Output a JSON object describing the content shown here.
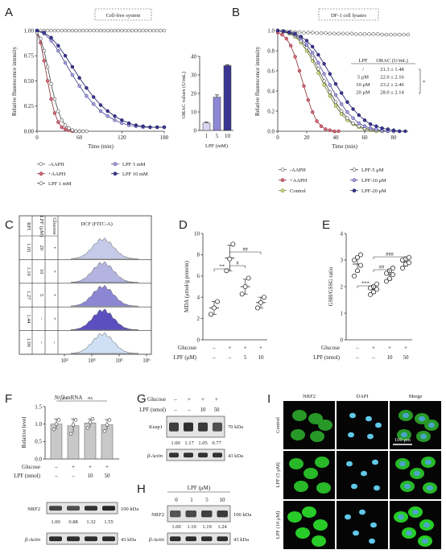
{
  "panels": {
    "A": {
      "letter": "A",
      "box_title": "Cell-free system",
      "ylabel": "Relative fluorescence intensity",
      "xlabel": "Time (min)",
      "legend": [
        "-AAPH",
        "+AAPH",
        "LPF 1 mM",
        "LPF 5 mM",
        "LPF 10 mM"
      ],
      "inset": {
        "ylabel": "ORAC values (U/mL)",
        "xlabel": "LPF (mM)"
      }
    },
    "B": {
      "letter": "B",
      "box_title": "DF-1 cell lysates",
      "ylabel": "Relative fluorescence intensity",
      "xlabel": "Time (min)",
      "legend": [
        "-AAPH",
        "+AAPH",
        "Control",
        "LPF-5 μM",
        "LPF-10 μM",
        "LPF-20 μM"
      ],
      "table": {
        "headers": [
          "LPF",
          "ORAC (U/mL)"
        ],
        "rows": [
          [
            "/",
            "21.3 ± 1.48"
          ],
          [
            "5 μM",
            "22.0 ± 2.16"
          ],
          [
            "10 μM",
            "23.2 ± 2.46"
          ],
          [
            "20 μM",
            "28.0 ± 2.14"
          ]
        ],
        "sig": "*"
      }
    },
    "C": {
      "letter": "C",
      "title": "DCF (FITC-A)",
      "col_headers": [
        "RFI",
        "LPF (μM)",
        "Glucose"
      ],
      "rows": [
        [
          "1.05",
          "20",
          "+"
        ],
        [
          "1.10",
          "10",
          "+"
        ],
        [
          "1.27",
          "5",
          "+"
        ],
        [
          "1.44",
          "–",
          "+"
        ],
        [
          "1.00",
          "–",
          "–"
        ]
      ],
      "xticks": [
        "10³",
        "10⁴",
        "10⁵",
        "10⁶"
      ]
    },
    "D": {
      "letter": "D",
      "ylabel": "MDA (μmol/g protein)",
      "sig": [
        "**",
        "#",
        "##"
      ],
      "row_labels": [
        "Glucose",
        "LPF (μM)"
      ],
      "glucose": [
        "–",
        "+",
        "+",
        "+"
      ],
      "lpf": [
        "–",
        "–",
        "5",
        "10"
      ]
    },
    "E": {
      "letter": "E",
      "ylabel": "GSH/GSSG ratio",
      "sig": [
        "***",
        "##",
        "###"
      ],
      "row_labels": [
        "Glucose",
        "LPF (nmol)"
      ],
      "glucose": [
        "–",
        "+",
        "+",
        "+"
      ],
      "lpf": [
        "–",
        "–",
        "10",
        "50"
      ]
    },
    "F": {
      "letter": "F",
      "title_gene": "Nrf2",
      "title_rest": " mRNA",
      "ylabel": "Relative level",
      "sig": [
        "ns",
        "ns"
      ],
      "row_labels": [
        "Glucose",
        "LPF (nmol)"
      ],
      "glucose": [
        "–",
        "+",
        "+",
        "+"
      ],
      "lpf": [
        "–",
        "–",
        "10",
        "50"
      ],
      "blots": [
        {
          "name": "NRF2",
          "size": "100 kDa",
          "values": [
            "1.00",
            "0.88",
            "1.32",
            "1.55"
          ]
        },
        {
          "name": "β-Actin",
          "size": "43 kDa"
        }
      ]
    },
    "G": {
      "letter": "G",
      "row_labels": [
        "Glucose",
        "LPF (nmol)"
      ],
      "glucose": [
        "–",
        "+",
        "+",
        "+"
      ],
      "lpf": [
        "–",
        "–",
        "10",
        "50"
      ],
      "blots": [
        {
          "name": "Keap1",
          "size": "70 kDa",
          "values": [
            "1.00",
            "1.17",
            "1.05",
            "0.77"
          ]
        },
        {
          "name": "β-Actin",
          "size": "43 kDa"
        }
      ]
    },
    "H": {
      "letter": "H",
      "header": "LPF (μM)",
      "lanes": [
        "0",
        "1",
        "5",
        "10"
      ],
      "blots": [
        {
          "name": "NRF2",
          "size": "100 kDa",
          "values": [
            "1.00",
            "1.10",
            "1.19",
            "1.24"
          ]
        },
        {
          "name": "β-Actin",
          "size": "43 kDa"
        }
      ]
    },
    "I": {
      "letter": "I",
      "columns": [
        "NRF2",
        "DAPI",
        "Merge"
      ],
      "rows": [
        "Control",
        "LPF (5 μM)",
        "LPF (10 μM)"
      ],
      "scale": "100 μm"
    }
  },
  "chart_data": [
    {
      "panel": "A",
      "type": "line",
      "xlabel": "Time (min)",
      "ylabel": "Relative fluorescence intensity",
      "xlim": [
        0,
        180
      ],
      "ylim": [
        0,
        1.0
      ],
      "xticks": [
        0,
        60,
        120,
        180
      ],
      "yticks": [
        0,
        0.25,
        0.5,
        0.75,
        1.0
      ],
      "series": [
        {
          "name": "-AAPH",
          "color": "#ffffff",
          "stroke": "#555555",
          "x": [
            0,
            5,
            10,
            15,
            20,
            25,
            30,
            35,
            40,
            45,
            50,
            55,
            60,
            65,
            70,
            75,
            80,
            85,
            90,
            95,
            100,
            105,
            110,
            115,
            120,
            125,
            130,
            135,
            140,
            145,
            150,
            155,
            160,
            165,
            170,
            175,
            180
          ],
          "y": [
            1,
            1,
            1,
            1,
            1,
            1,
            1,
            1,
            1,
            1,
            1,
            1,
            1,
            1,
            1,
            1,
            1,
            1,
            1,
            1,
            1,
            1,
            1,
            1,
            1,
            1,
            1,
            1,
            1,
            1,
            1,
            1,
            1,
            1,
            1,
            1,
            1
          ]
        },
        {
          "name": "+AAPH",
          "color": "#d86a78",
          "stroke": "#8b2e3a",
          "x": [
            0,
            5,
            10,
            15,
            20,
            25,
            30,
            35,
            40,
            45,
            50,
            55,
            60
          ],
          "y": [
            0.98,
            0.88,
            0.7,
            0.5,
            0.32,
            0.18,
            0.09,
            0.04,
            0.02,
            0.01,
            0.0,
            0.0,
            0.0
          ]
        },
        {
          "name": "LPF 1 mM",
          "color": "#ffffff",
          "stroke": "#444444",
          "x": [
            0,
            5,
            10,
            15,
            20,
            25,
            30,
            35,
            40,
            45,
            50,
            55,
            60,
            65,
            70
          ],
          "y": [
            0.98,
            0.92,
            0.8,
            0.64,
            0.47,
            0.32,
            0.2,
            0.11,
            0.06,
            0.03,
            0.01,
            0.0,
            0.0,
            0.0,
            0.0
          ]
        },
        {
          "name": "LPF 5 mM",
          "color": "#a8a4e0",
          "stroke": "#4a4590",
          "x": [
            0,
            10,
            20,
            30,
            40,
            50,
            60,
            70,
            80,
            90,
            100,
            110,
            120,
            130,
            140,
            150,
            160,
            170,
            180
          ],
          "y": [
            1,
            0.97,
            0.9,
            0.8,
            0.68,
            0.56,
            0.45,
            0.35,
            0.27,
            0.2,
            0.15,
            0.11,
            0.08,
            0.06,
            0.05,
            0.04,
            0.04,
            0.04,
            0.04
          ]
        },
        {
          "name": "LPF 10 mM",
          "color": "#3a3690",
          "stroke": "#1f1c60",
          "x": [
            0,
            10,
            20,
            30,
            40,
            50,
            60,
            70,
            80,
            90,
            100,
            110,
            120,
            130,
            140,
            150,
            160,
            170,
            180
          ],
          "y": [
            1,
            0.98,
            0.93,
            0.85,
            0.75,
            0.64,
            0.53,
            0.43,
            0.34,
            0.26,
            0.2,
            0.15,
            0.11,
            0.08,
            0.06,
            0.05,
            0.04,
            0.04,
            0.04
          ]
        }
      ]
    },
    {
      "panel": "A-inset",
      "type": "bar",
      "xlabel": "LPF (mM)",
      "ylabel": "ORAC values (U/mL)",
      "categories": [
        "1",
        "5",
        "10"
      ],
      "values": [
        4,
        18,
        35
      ],
      "errors": [
        0.5,
        1.2,
        0.5
      ],
      "colors": [
        "#d9d5f2",
        "#8e88d4",
        "#3a3690"
      ],
      "ylim": [
        0,
        40
      ],
      "yticks": [
        0,
        10,
        20,
        30,
        40
      ]
    },
    {
      "panel": "B",
      "type": "line",
      "xlabel": "Time (min)",
      "ylabel": "Relative fluorescence intensity",
      "xlim": [
        0,
        90
      ],
      "ylim": [
        0,
        1.0
      ],
      "xticks": [
        0,
        20,
        40,
        60,
        80
      ],
      "yticks": [
        0,
        0.2,
        0.4,
        0.6,
        0.8,
        1.0
      ],
      "series": [
        {
          "name": "-AAPH",
          "color": "#ffffff",
          "stroke": "#555555",
          "x": [
            0,
            3,
            6,
            9,
            12,
            15,
            18,
            21,
            24,
            27,
            30,
            33,
            36,
            39,
            42,
            45,
            48,
            51,
            54,
            57,
            60,
            63,
            66,
            69,
            72,
            75,
            78,
            81,
            84,
            87,
            90
          ],
          "y": [
            1,
            0.995,
            0.99,
            0.99,
            0.985,
            0.985,
            0.98,
            0.98,
            0.98,
            0.975,
            0.975,
            0.975,
            0.97,
            0.97,
            0.97,
            0.97,
            0.97,
            0.97,
            0.965,
            0.965,
            0.965,
            0.965,
            0.965,
            0.965,
            0.96,
            0.96,
            0.96,
            0.96,
            0.96,
            0.96,
            0.96
          ]
        },
        {
          "name": "+AAPH",
          "color": "#d86a78",
          "stroke": "#8b2e3a",
          "x": [
            0,
            3,
            6,
            9,
            12,
            15,
            18,
            21,
            24,
            27,
            30,
            33,
            36,
            39,
            42
          ],
          "y": [
            0.98,
            0.96,
            0.92,
            0.85,
            0.74,
            0.6,
            0.45,
            0.31,
            0.19,
            0.1,
            0.05,
            0.02,
            0.01,
            0.0,
            0.0
          ]
        },
        {
          "name": "Control",
          "color": "#d4e08a",
          "stroke": "#6b7a20",
          "x": [
            0,
            4,
            8,
            12,
            16,
            20,
            24,
            28,
            32,
            36,
            40,
            44,
            48,
            52,
            56,
            60,
            64,
            68,
            72,
            76,
            80
          ],
          "y": [
            1,
            0.99,
            0.97,
            0.94,
            0.88,
            0.8,
            0.7,
            0.58,
            0.46,
            0.35,
            0.25,
            0.17,
            0.11,
            0.07,
            0.04,
            0.02,
            0.01,
            0.0,
            0.0,
            0.0,
            0.0
          ]
        },
        {
          "name": "LPF-5 μM",
          "color": "#ffffff",
          "stroke": "#444444",
          "x": [
            0,
            4,
            8,
            12,
            16,
            20,
            24,
            28,
            32,
            36,
            40,
            44,
            48,
            52,
            56,
            60,
            64,
            68,
            72,
            76,
            80
          ],
          "y": [
            1,
            0.99,
            0.975,
            0.95,
            0.9,
            0.83,
            0.73,
            0.62,
            0.5,
            0.39,
            0.29,
            0.2,
            0.13,
            0.08,
            0.05,
            0.03,
            0.02,
            0.01,
            0.0,
            0.0,
            0.0
          ]
        },
        {
          "name": "LPF-10 μM",
          "color": "#a8a4e0",
          "stroke": "#4a4590",
          "x": [
            0,
            4,
            8,
            12,
            16,
            20,
            24,
            28,
            32,
            36,
            40,
            44,
            48,
            52,
            56,
            60,
            64,
            68,
            72,
            76,
            80,
            84
          ],
          "y": [
            1,
            0.99,
            0.98,
            0.96,
            0.92,
            0.86,
            0.78,
            0.68,
            0.57,
            0.46,
            0.36,
            0.27,
            0.19,
            0.13,
            0.08,
            0.05,
            0.03,
            0.02,
            0.01,
            0.0,
            0.0,
            0.0
          ]
        },
        {
          "name": "LPF-20 μM",
          "color": "#3a3690",
          "stroke": "#1f1c60",
          "x": [
            0,
            4,
            8,
            12,
            16,
            20,
            24,
            28,
            32,
            36,
            40,
            44,
            48,
            52,
            56,
            60,
            64,
            68,
            72,
            76,
            80,
            84,
            88
          ],
          "y": [
            1,
            0.995,
            0.985,
            0.97,
            0.94,
            0.9,
            0.84,
            0.76,
            0.67,
            0.57,
            0.47,
            0.38,
            0.29,
            0.22,
            0.16,
            0.11,
            0.07,
            0.05,
            0.03,
            0.02,
            0.01,
            0.0,
            0.0
          ]
        }
      ]
    },
    {
      "panel": "D",
      "type": "scatter",
      "ylabel": "MDA (μmol/g protein)",
      "ylim": [
        0,
        10
      ],
      "yticks": [
        0,
        2,
        4,
        6,
        8,
        10
      ],
      "groups": [
        {
          "points": [
            2.4,
            3.0,
            3.6
          ],
          "mean": 3.0,
          "sd": 0.6
        },
        {
          "points": [
            6.5,
            7.6,
            9.0
          ],
          "mean": 7.7,
          "sd": 1.2
        },
        {
          "points": [
            4.3,
            5.0,
            5.8
          ],
          "mean": 5.0,
          "sd": 0.7
        },
        {
          "points": [
            3.0,
            3.5,
            4.0
          ],
          "mean": 3.5,
          "sd": 0.5
        }
      ]
    },
    {
      "panel": "E",
      "type": "scatter",
      "ylabel": "GSH/GSSG ratio",
      "ylim": [
        0,
        4
      ],
      "yticks": [
        0,
        1,
        2,
        3,
        4
      ],
      "groups": [
        {
          "points": [
            2.4,
            2.6,
            2.8,
            3.0,
            3.1,
            3.2
          ],
          "mean": 2.85,
          "sd": 0.3
        },
        {
          "points": [
            1.7,
            1.8,
            1.9,
            1.95,
            2.0,
            2.1
          ],
          "mean": 1.9,
          "sd": 0.15
        },
        {
          "points": [
            2.2,
            2.3,
            2.45,
            2.5,
            2.6,
            2.7
          ],
          "mean": 2.45,
          "sd": 0.2
        },
        {
          "points": [
            2.7,
            2.85,
            2.9,
            3.0,
            3.05,
            3.1
          ],
          "mean": 2.93,
          "sd": 0.15
        }
      ]
    },
    {
      "panel": "F",
      "type": "bar",
      "ylabel": "Relative level",
      "categories": [
        "1",
        "2",
        "3",
        "4"
      ],
      "values": [
        1.0,
        0.95,
        1.03,
        0.98
      ],
      "errors": [
        0.15,
        0.2,
        0.12,
        0.15
      ],
      "points": [
        [
          0.85,
          1.0,
          1.12
        ],
        [
          0.72,
          0.98,
          1.12
        ],
        [
          0.88,
          1.05,
          1.15
        ],
        [
          0.8,
          0.98,
          1.12
        ]
      ],
      "color": "#c8c8c8",
      "ylim": [
        0,
        1.5
      ],
      "yticks": [
        0.0,
        0.5,
        1.0,
        1.5
      ]
    },
    {
      "panel": "C",
      "type": "area",
      "xlabel": "",
      "xticks": [
        "10³",
        "10⁴",
        "10⁵",
        "10⁶"
      ],
      "series": [
        {
          "color": "#c4cae8"
        },
        {
          "color": "#b3b4df"
        },
        {
          "color": "#8c87d3"
        },
        {
          "color": "#5b4fc0"
        },
        {
          "color": "#cfe0f5"
        }
      ]
    }
  ]
}
